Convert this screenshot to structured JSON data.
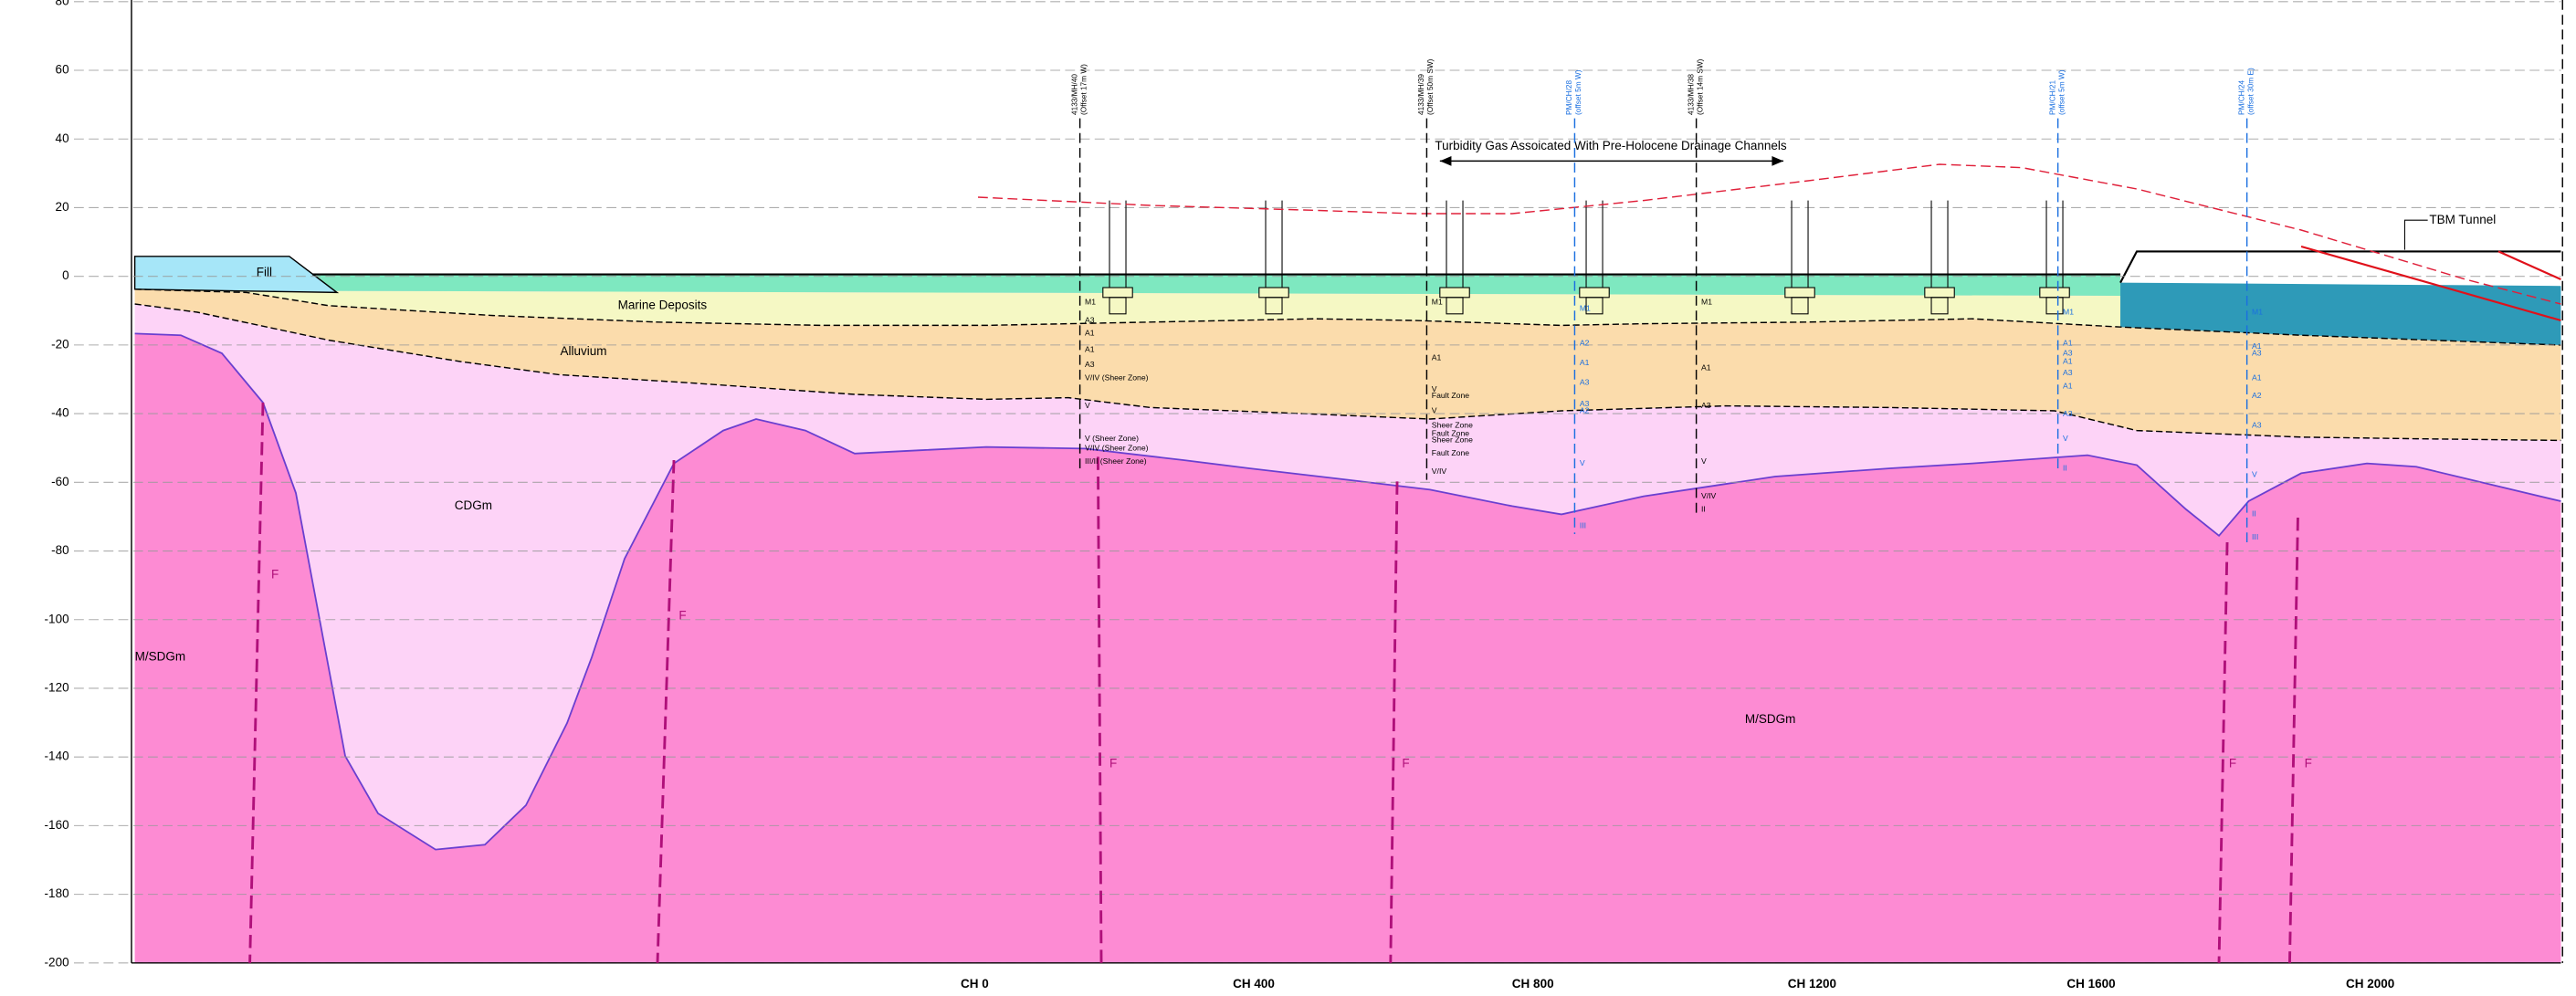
{
  "axis": {
    "ylim": [
      -200,
      80
    ],
    "yticks": [
      80,
      60,
      40,
      20,
      0,
      -20,
      -40,
      -60,
      -80,
      -100,
      -120,
      -140,
      -160,
      -180,
      -200
    ],
    "xticks": [
      {
        "value": 0,
        "label": "CH 0"
      },
      {
        "value": 400,
        "label": "CH 400"
      },
      {
        "value": 800,
        "label": "CH 800"
      },
      {
        "value": 1200,
        "label": "CH 1200"
      },
      {
        "value": 1600,
        "label": "CH 1600"
      },
      {
        "value": 2000,
        "label": "CH 2000"
      }
    ]
  },
  "labels": {
    "fill": "Fill",
    "marine": "Marine Deposits",
    "alluvium": "Alluvium",
    "cdgm": "CDGm",
    "msdgm_left": "M/SDGm",
    "msdgm": "M/SDGm",
    "tbm": "TBM Tunnel",
    "annotation": "Turbidity Gas Assoicated With Pre-Holocene Drainage Channels"
  },
  "faults": [
    "F",
    "F",
    "F",
    "F",
    "F",
    "F"
  ],
  "boreholes": [
    {
      "id": "4133/MH/40",
      "note": "(Offset 17m W)",
      "strata": [
        "M1",
        "A3",
        "A1",
        "A1",
        "A3",
        "V/IV (Sheer Zone)",
        "V",
        "V (Sheer Zone)",
        "V/IV (Sheer Zone)",
        "III/II (Sheer Zone)"
      ]
    },
    {
      "id": "4133/MH/39",
      "note": "(Offset 50m SW)",
      "strata": [
        "M1",
        "A1",
        "V",
        "Fault Zone",
        "V",
        "Sheer Zone",
        "Fault Zone",
        "Sheer Zone",
        "Fault Zone",
        "V/IV"
      ]
    },
    {
      "id": "PM/CH/28",
      "note": "(offset 5m W)",
      "strata": [
        "M1",
        "A2",
        "A1",
        "A3",
        "A3",
        "A2",
        "V",
        "III"
      ]
    },
    {
      "id": "4133/MH/38",
      "note": "(Offset 14m SW)",
      "strata": [
        "M1",
        "A1",
        "A3",
        "V",
        "V/IV",
        "II"
      ]
    },
    {
      "id": "PM/CH/21",
      "note": "(offset 5m W)",
      "strata": [
        "M1",
        "A1",
        "A3",
        "A1",
        "A3",
        "A1",
        "A3",
        "V",
        "II"
      ]
    },
    {
      "id": "PM/CH/24",
      "note": "(offset 30m E)",
      "strata": [
        "M1",
        "A1",
        "A3",
        "A1",
        "A2",
        "A3",
        "V",
        "II",
        "III"
      ]
    }
  ]
}
